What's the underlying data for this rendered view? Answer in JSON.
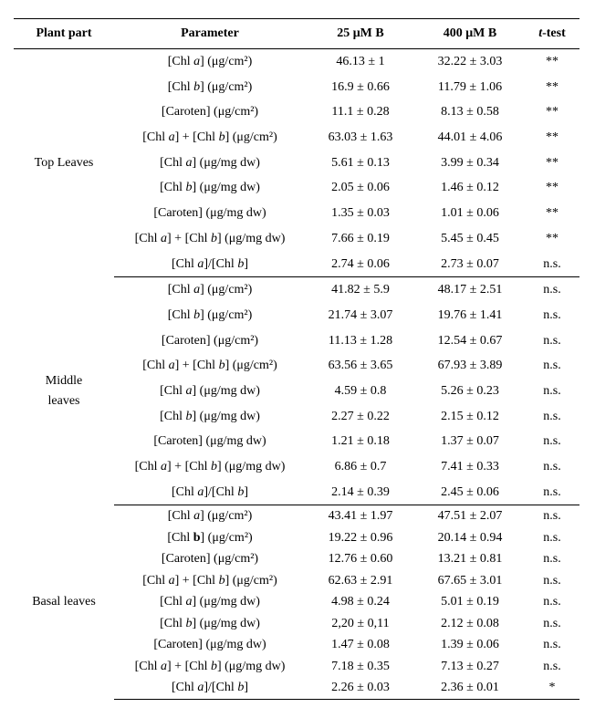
{
  "headers": {
    "plant_part": "Plant part",
    "parameter": "Parameter",
    "col25": "25 μM B",
    "col400": "400 μM B",
    "ttest_html": "<span class='ital'>t</span>-test"
  },
  "sections": [
    {
      "plant_part": "Top Leaves",
      "tight": false,
      "rows": [
        {
          "param_html": "[Chl <span class='ital'>a</span>] (μg/cm²)",
          "v25": "46.13 ± 1",
          "v400": "32.22 ± 3.03",
          "t": "**"
        },
        {
          "param_html": "[Chl <span class='ital'>b</span>] (μg/cm²)",
          "v25": "16.9 ± 0.66",
          "v400": "11.79 ± 1.06",
          "t": "**"
        },
        {
          "param_html": "[Caroten] (μg/cm²)",
          "v25": "11.1 ± 0.28",
          "v400": "8.13 ± 0.58",
          "t": "**"
        },
        {
          "param_html": "[Chl <span class='ital'>a</span>] + [Chl <span class='ital'>b</span>] (μg/cm²)",
          "v25": "63.03 ± 1.63",
          "v400": "44.01 ± 4.06",
          "t": "**"
        },
        {
          "param_html": "[Chl <span class='ital'>a</span>] (μg/mg dw)",
          "v25": "5.61 ± 0.13",
          "v400": "3.99 ± 0.34",
          "t": "**"
        },
        {
          "param_html": "[Chl <span class='ital'>b</span>] (μg/mg dw)",
          "v25": "2.05 ± 0.06",
          "v400": "1.46 ± 0.12",
          "t": "**"
        },
        {
          "param_html": "[Caroten] (μg/mg dw)",
          "v25": "1.35 ± 0.03",
          "v400": "1.01 ± 0.06",
          "t": "**"
        },
        {
          "param_html": "[Chl <span class='ital'>a</span>] + [Chl <span class='ital'>b</span>] (μg/mg dw)",
          "v25": "7.66 ± 0.19",
          "v400": "5.45 ± 0.45",
          "t": "**"
        },
        {
          "param_html": "[Chl <span class='ital'>a</span>]/[Chl <span class='ital'>b</span>]",
          "v25": "2.74 ± 0.06",
          "v400": "2.73 ± 0.07",
          "t": "n.s."
        }
      ]
    },
    {
      "plant_part": "Middle\nleaves",
      "tight": false,
      "rows": [
        {
          "param_html": "[Chl <span class='ital'>a</span>] (μg/cm²)",
          "v25": "41.82 ± 5.9",
          "v400": "48.17 ± 2.51",
          "t": "n.s."
        },
        {
          "param_html": "[Chl <span class='ital'>b</span>] (μg/cm²)",
          "v25": "21.74 ± 3.07",
          "v400": "19.76 ± 1.41",
          "t": "n.s."
        },
        {
          "param_html": "[Caroten] (μg/cm²)",
          "v25": "11.13 ± 1.28",
          "v400": "12.54 ± 0.67",
          "t": "n.s."
        },
        {
          "param_html": "[Chl <span class='ital'>a</span>] + [Chl <span class='ital'>b</span>] (μg/cm²)",
          "v25": "63.56 ± 3.65",
          "v400": "67.93 ± 3.89",
          "t": "n.s."
        },
        {
          "param_html": "[Chl <span class='ital'>a</span>] (μg/mg dw)",
          "v25": "4.59 ± 0.8",
          "v400": "5.26 ± 0.23",
          "t": "n.s."
        },
        {
          "param_html": "[Chl <span class='ital'>b</span>] (μg/mg dw)",
          "v25": "2.27 ± 0.22",
          "v400": "2.15 ± 0.12",
          "t": "n.s."
        },
        {
          "param_html": "[Caroten] (μg/mg dw)",
          "v25": "1.21 ± 0.18",
          "v400": "1.37 ± 0.07",
          "t": "n.s."
        },
        {
          "param_html": "[Chl <span class='ital'>a</span>] + [Chl <span class='ital'>b</span>] (μg/mg dw)",
          "v25": "6.86 ± 0.7",
          "v400": "7.41 ± 0.33",
          "t": "n.s."
        },
        {
          "param_html": "[Chl <span class='ital'>a</span>]/[Chl <span class='ital'>b</span>]",
          "v25": "2.14 ± 0.39",
          "v400": "2.45 ± 0.06",
          "t": "n.s."
        }
      ]
    },
    {
      "plant_part": "Basal leaves",
      "tight": true,
      "rows": [
        {
          "param_html": "[Chl <span class='ital'>a</span>] (μg/cm²)",
          "v25": "43.41 ± 1.97",
          "v400": "47.51 ± 2.07",
          "t": "n.s."
        },
        {
          "param_html": "[Chl <b>b</b>] (μg/cm²)",
          "v25": "19.22 ± 0.96",
          "v400": "20.14 ± 0.94",
          "t": "n.s."
        },
        {
          "param_html": "[Caroten] (μg/cm²)",
          "v25": "12.76 ± 0.60",
          "v400": "13.21 ± 0.81",
          "t": "n.s."
        },
        {
          "param_html": "[Chl <span class='ital'>a</span>] + [Chl <span class='ital'>b</span>] (μg/cm²)",
          "v25": "62.63 ± 2.91",
          "v400": "67.65 ± 3.01",
          "t": "n.s."
        },
        {
          "param_html": "[Chl <span class='ital'>a</span>] (μg/mg dw)",
          "v25": "4.98 ± 0.24",
          "v400": "5.01 ± 0.19",
          "t": "n.s."
        },
        {
          "param_html": "[Chl <span class='ital'>b</span>] (μg/mg dw)",
          "v25": "2,20 ± 0,11",
          "v400": "2.12 ± 0.08",
          "t": "n.s."
        },
        {
          "param_html": "[Caroten] (μg/mg dw)",
          "v25": "1.47 ± 0.08",
          "v400": "1.39 ± 0.06",
          "t": "n.s."
        },
        {
          "param_html": "[Chl <span class='ital'>a</span>] + [Chl <span class='ital'>b</span>] (μg/mg dw)",
          "v25": "7.18 ± 0.35",
          "v400": "7.13 ± 0.27",
          "t": "n.s."
        },
        {
          "param_html": "[Chl <span class='ital'>a</span>]/[Chl <span class='ital'>b</span>]",
          "v25": "2.26 ± 0.03",
          "v400": "2.36 ± 0.01",
          "t": "*"
        }
      ]
    }
  ]
}
